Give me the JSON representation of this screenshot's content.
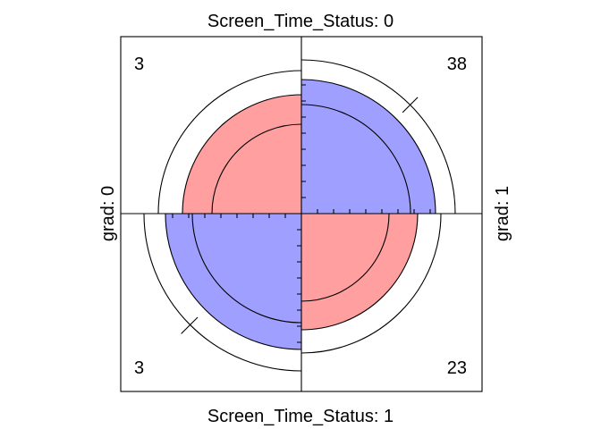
{
  "chart_data": {
    "type": "fourfold",
    "row_variable": "Screen_Time_Status",
    "column_variable": "grad",
    "top_label": "Screen_Time_Status: 0",
    "bottom_label": "Screen_Time_Status: 1",
    "left_label": "grad: 0",
    "right_label": "grad: 1",
    "cells": [
      {
        "Screen_Time_Status": "0",
        "grad": "0",
        "count": 3,
        "quadrant": "top-left",
        "color": "#ff9f9f"
      },
      {
        "Screen_Time_Status": "0",
        "grad": "1",
        "count": 38,
        "quadrant": "top-right",
        "color": "#9f9fff"
      },
      {
        "Screen_Time_Status": "1",
        "grad": "0",
        "count": 3,
        "quadrant": "bottom-left",
        "color": "#9f9fff"
      },
      {
        "Screen_Time_Status": "1",
        "grad": "1",
        "count": 23,
        "quadrant": "bottom-right",
        "color": "#ff9f9f"
      }
    ],
    "confidence_rings": true,
    "colors": {
      "positive_association": "#9f9fff",
      "negative_association": "#ff9f9f"
    }
  }
}
